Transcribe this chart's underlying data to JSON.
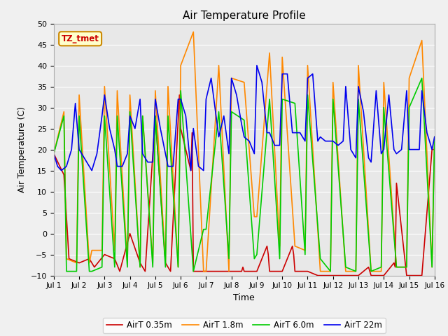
{
  "title": "Air Temperature Profile",
  "xlabel": "Time",
  "ylabel": "Air Temperature (C)",
  "ylim": [
    -10,
    50
  ],
  "xlim": [
    0,
    15
  ],
  "fig_bg": "#f0f0f0",
  "plot_bg": "#e8e8e8",
  "annotation_text": "TZ_tmet",
  "annotation_color": "#cc0000",
  "annotation_bg": "#ffffcc",
  "annotation_border": "#cc8800",
  "xtick_labels": [
    "Jul 1",
    "Jul 2",
    "Jul 3",
    "Jul 4",
    "Jul 5",
    "Jul 6",
    "Jul 7",
    "Jul 8",
    "Jul 9",
    "Jul 10",
    "Jul 11",
    "Jul 12",
    "Jul 13",
    "Jul 14",
    "Jul 15",
    "Jul 16"
  ],
  "series": {
    "AirT 0.35m": {
      "color": "#cc0000",
      "x": [
        0.0,
        0.4,
        0.6,
        1.0,
        1.4,
        1.6,
        2.0,
        2.4,
        2.6,
        3.0,
        3.4,
        3.6,
        4.0,
        4.4,
        4.6,
        4.95,
        5.0,
        5.4,
        5.45,
        5.5,
        5.9,
        6.0,
        6.4,
        6.45,
        6.5,
        6.9,
        7.0,
        7.4,
        7.45,
        7.5,
        7.9,
        8.0,
        8.4,
        8.45,
        8.5,
        8.9,
        9.0,
        9.4,
        9.45,
        9.5,
        9.9,
        10.0,
        10.4,
        10.45,
        10.5,
        10.9,
        11.0,
        11.4,
        11.5,
        11.9,
        12.0,
        12.4,
        12.5,
        12.9,
        13.0,
        13.4,
        13.45,
        13.5,
        13.9,
        14.0,
        14.4,
        14.5,
        14.9,
        15.0
      ],
      "y": [
        19,
        14,
        -6,
        -7,
        -6,
        -8,
        -5,
        -6,
        -9,
        0,
        -7,
        -9,
        28,
        -7,
        -9,
        33,
        25,
        15,
        24,
        -9,
        -9,
        -9,
        -9,
        -9,
        -9,
        -9,
        -9,
        -9,
        -8,
        -9,
        -9,
        -9,
        -3,
        -5,
        -9,
        -9,
        -9,
        -3,
        -5,
        -9,
        -9,
        -9,
        -10,
        -10,
        -10,
        -10,
        -10,
        -10,
        -10,
        -10,
        -10,
        -8,
        -10,
        -10,
        -10,
        -7,
        -8,
        12,
        -10,
        -10,
        -10,
        -10,
        20,
        20
      ]
    },
    "AirT 1.8m": {
      "color": "#ff8800",
      "x": [
        0.0,
        0.4,
        0.5,
        0.9,
        1.0,
        1.4,
        1.5,
        1.9,
        2.0,
        2.4,
        2.5,
        2.9,
        3.0,
        3.4,
        3.5,
        3.9,
        4.0,
        4.4,
        4.5,
        4.9,
        5.0,
        5.5,
        5.9,
        6.0,
        6.5,
        6.9,
        7.0,
        7.5,
        7.9,
        8.0,
        8.5,
        8.9,
        9.0,
        9.5,
        9.9,
        10.0,
        10.5,
        10.9,
        11.0,
        11.5,
        11.9,
        12.0,
        12.5,
        12.9,
        13.0,
        13.5,
        13.9,
        14.0,
        14.5,
        14.9,
        15.0
      ],
      "y": [
        19,
        29,
        -6,
        -7,
        33,
        -7,
        -4,
        -4,
        35,
        -4,
        34,
        -7,
        33,
        -8,
        28,
        -7,
        34,
        -7,
        35,
        -8,
        40,
        48,
        -9,
        -9,
        40,
        -9,
        37,
        36,
        4,
        4,
        43,
        -3,
        42,
        -3,
        -4,
        40,
        -9,
        -9,
        36,
        -9,
        -9,
        40,
        -9,
        -9,
        36,
        -8,
        -8,
        37,
        46,
        -8,
        23
      ]
    },
    "AirT 6.0m": {
      "color": "#00cc00",
      "x": [
        0.0,
        0.4,
        0.5,
        0.9,
        1.0,
        1.4,
        1.5,
        1.9,
        2.0,
        2.4,
        2.5,
        2.9,
        3.0,
        3.4,
        3.5,
        3.9,
        4.0,
        4.4,
        4.5,
        4.9,
        5.0,
        5.5,
        5.9,
        6.0,
        6.5,
        6.9,
        7.0,
        7.5,
        7.9,
        8.0,
        8.5,
        8.9,
        9.0,
        9.5,
        9.9,
        10.0,
        10.5,
        10.9,
        11.0,
        11.5,
        11.9,
        12.0,
        12.5,
        12.9,
        13.0,
        13.5,
        13.9,
        14.0,
        14.5,
        14.9,
        15.0
      ],
      "y": [
        19,
        28,
        -9,
        -9,
        28,
        -9,
        -9,
        -8,
        28,
        -8,
        28,
        -8,
        29,
        -8,
        28,
        -8,
        28,
        -8,
        28,
        -8,
        34,
        -9,
        1,
        1,
        29,
        -6,
        29,
        27,
        -6,
        -5,
        32,
        -6,
        32,
        31,
        -5,
        33,
        -6,
        -9,
        32,
        -8,
        -9,
        32,
        -9,
        -8,
        30,
        -8,
        -8,
        30,
        37,
        -8,
        23
      ]
    },
    "AirT 22m": {
      "color": "#0000ee",
      "x": [
        0.0,
        0.15,
        0.3,
        0.5,
        0.7,
        0.85,
        1.0,
        1.2,
        1.4,
        1.5,
        1.7,
        1.9,
        2.0,
        2.2,
        2.4,
        2.5,
        2.7,
        2.9,
        3.0,
        3.2,
        3.4,
        3.5,
        3.7,
        3.9,
        4.0,
        4.2,
        4.4,
        4.5,
        4.7,
        4.9,
        5.0,
        5.2,
        5.4,
        5.5,
        5.7,
        5.9,
        6.0,
        6.2,
        6.5,
        6.7,
        6.9,
        7.0,
        7.2,
        7.4,
        7.5,
        7.7,
        7.9,
        8.0,
        8.2,
        8.4,
        8.5,
        8.7,
        8.9,
        9.0,
        9.2,
        9.4,
        9.5,
        9.7,
        9.9,
        10.0,
        10.2,
        10.4,
        10.5,
        10.7,
        10.9,
        11.0,
        11.2,
        11.4,
        11.5,
        11.7,
        11.9,
        12.0,
        12.2,
        12.4,
        12.5,
        12.7,
        12.9,
        13.0,
        13.2,
        13.4,
        13.5,
        13.7,
        13.9,
        14.0,
        14.2,
        14.4,
        14.5,
        14.7,
        14.9,
        15.0
      ],
      "y": [
        19,
        16,
        15,
        16,
        20,
        31,
        20,
        18,
        16,
        15,
        19,
        28,
        33,
        25,
        20,
        16,
        16,
        19,
        28,
        25,
        32,
        19,
        17,
        17,
        32,
        25,
        19,
        16,
        16,
        32,
        32,
        28,
        15,
        25,
        16,
        15,
        32,
        37,
        23,
        28,
        19,
        37,
        33,
        26,
        23,
        22,
        19,
        40,
        36,
        24,
        24,
        21,
        21,
        38,
        38,
        24,
        24,
        24,
        22,
        37,
        38,
        22,
        23,
        22,
        22,
        22,
        21,
        22,
        35,
        20,
        18,
        35,
        29,
        18,
        17,
        34,
        19,
        20,
        33,
        20,
        19,
        20,
        34,
        20,
        20,
        20,
        34,
        24,
        20,
        23
      ]
    }
  }
}
